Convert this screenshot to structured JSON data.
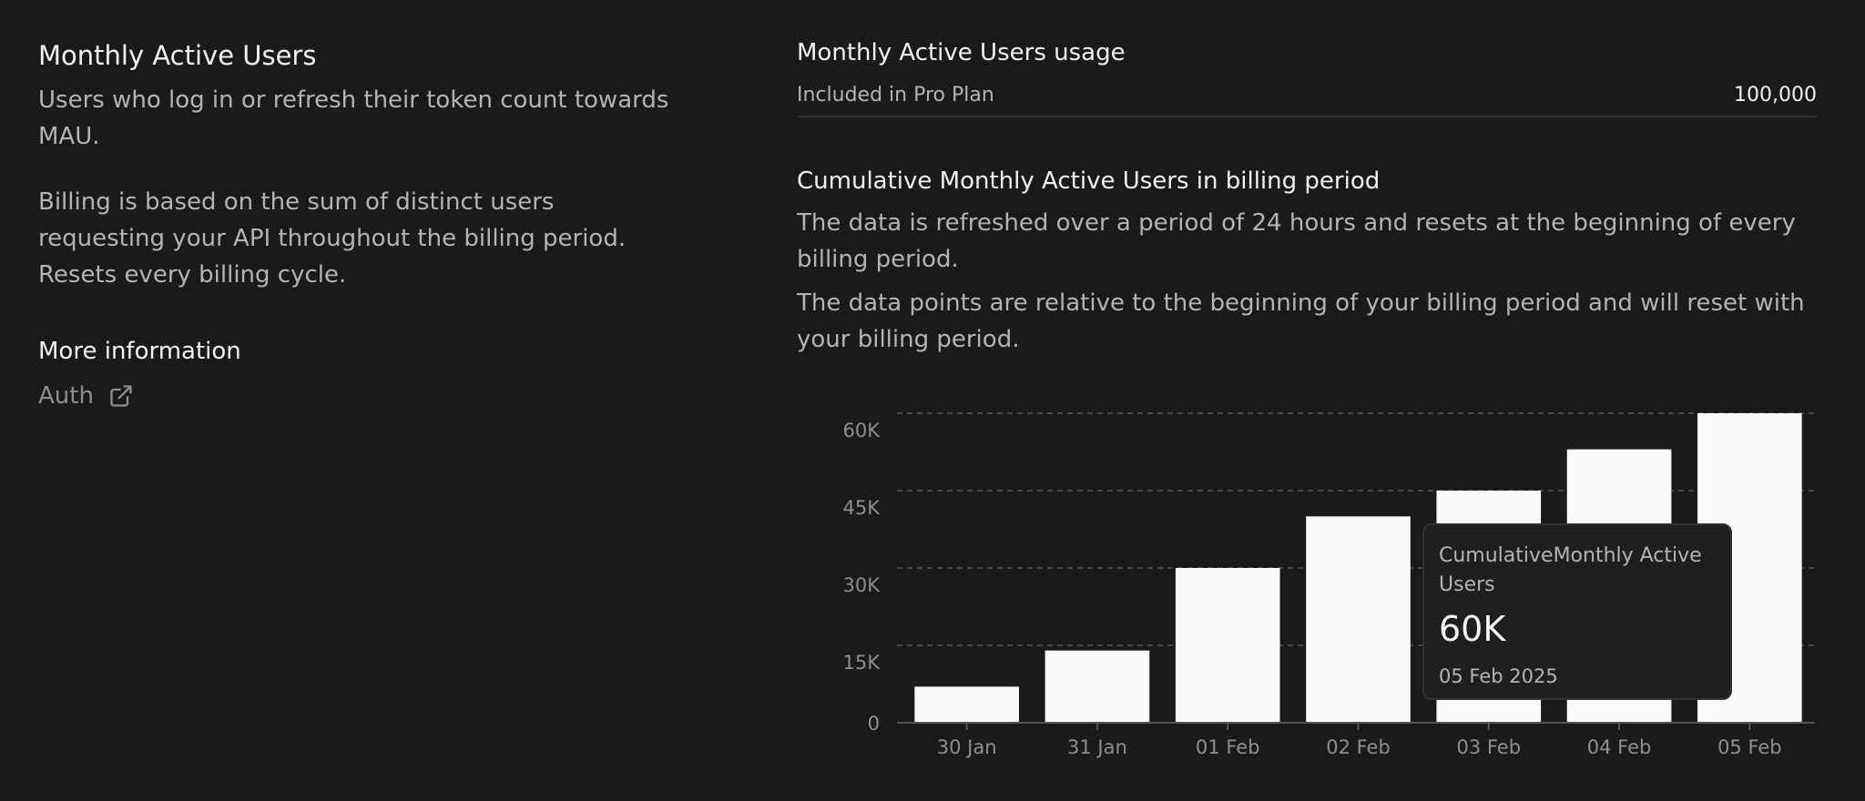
{
  "left": {
    "title": "Monthly Active Users",
    "description1": "Users who log in or refresh their token count towards MAU.",
    "description2": "Billing is based on the sum of distinct users requesting your API throughout the billing period. Resets every billing cycle.",
    "more_info_title": "More information",
    "link_label": "Auth",
    "link_icon": "external-link-icon"
  },
  "right": {
    "usage_title": "Monthly Active Users usage",
    "included_label": "Included in Pro Plan",
    "included_value": "100,000",
    "chart_title": "Cumulative Monthly Active Users in billing period",
    "chart_desc1": "The data is refreshed over a period of 24 hours and resets at the beginning of every billing period.",
    "chart_desc2": "The data points are relative to the beginning of your billing period and will reset with your billing period."
  },
  "tooltip": {
    "label": "CumulativeMonthly Active Users",
    "value": "60K",
    "date": "05 Feb 2025"
  },
  "colors": {
    "bar": "#fafafa",
    "grid": "#555555",
    "tick": "#8f8f8f"
  },
  "chart_data": {
    "type": "bar",
    "categories": [
      "30 Jan",
      "31 Jan",
      "01 Feb",
      "02 Feb",
      "03 Feb",
      "04 Feb",
      "05 Feb"
    ],
    "values": [
      7000,
      14000,
      30000,
      40000,
      45000,
      53000,
      60000
    ],
    "ylim": [
      0,
      60000
    ],
    "yticks": [
      0,
      15000,
      30000,
      45000,
      60000
    ],
    "ytick_labels": [
      "0",
      "15K",
      "30K",
      "45K",
      "60K"
    ],
    "grid": true
  }
}
